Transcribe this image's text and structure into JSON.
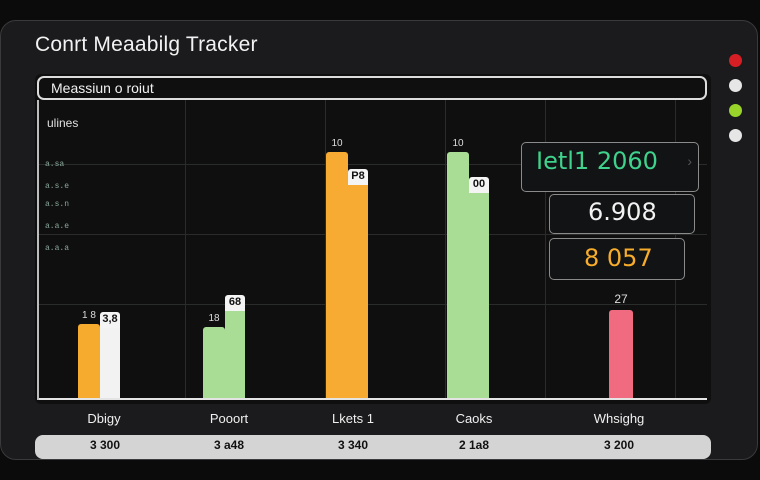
{
  "app": {
    "title": "Conrt Meaabilg Tracker"
  },
  "status_dots": [
    {
      "name": "red",
      "color": "#d61f24"
    },
    {
      "name": "white",
      "color": "#e6e6e6"
    },
    {
      "name": "green",
      "color": "#9ad42a"
    },
    {
      "name": "white",
      "color": "#e6e6e6"
    }
  ],
  "panel": {
    "header": "Meassiun o roiut"
  },
  "chart_data": {
    "type": "bar",
    "ylabel": "ulines",
    "yticks": [
      "a.sa",
      "a.s.e",
      "a.s.n",
      "a.a.e",
      "a.a.a"
    ],
    "categories": [
      "Dbigy",
      "Pooort",
      "Lkets 1",
      "Caoks",
      "Whsighg"
    ],
    "footer_values": [
      "3 300",
      "3 a48",
      "3 340",
      "2 1a8",
      "3 200"
    ],
    "series": [
      {
        "values": [
          3.0,
          2.9,
          10.0,
          10.0,
          3.6
        ],
        "colors": [
          "#f6ab2e",
          "#a9dd96",
          "#f8ab32",
          "#a9dd96",
          "#f06b7f"
        ]
      },
      {
        "values": [
          3.5,
          4.2,
          9.3,
          9.0,
          null
        ],
        "colors": [
          "#f2f2f2",
          "#a9dd96",
          "#f8ab32",
          "#a9dd96",
          null
        ]
      }
    ],
    "ylim": [
      0,
      10.5
    ],
    "bar_labels": [
      {
        "back": "3,8",
        "front": "1 8"
      },
      {
        "back": "68",
        "front": "18"
      },
      {
        "back": "P8",
        "front": "10"
      },
      {
        "back": "00",
        "front": "10"
      },
      {
        "back": "27",
        "front": ""
      }
    ]
  },
  "cards": [
    {
      "text": "Ietl1 2060",
      "color": "#3fd28c"
    },
    {
      "text": "6.908",
      "color": "#f2f2f2"
    },
    {
      "text": "8 057",
      "color": "#f7ac2c"
    }
  ]
}
